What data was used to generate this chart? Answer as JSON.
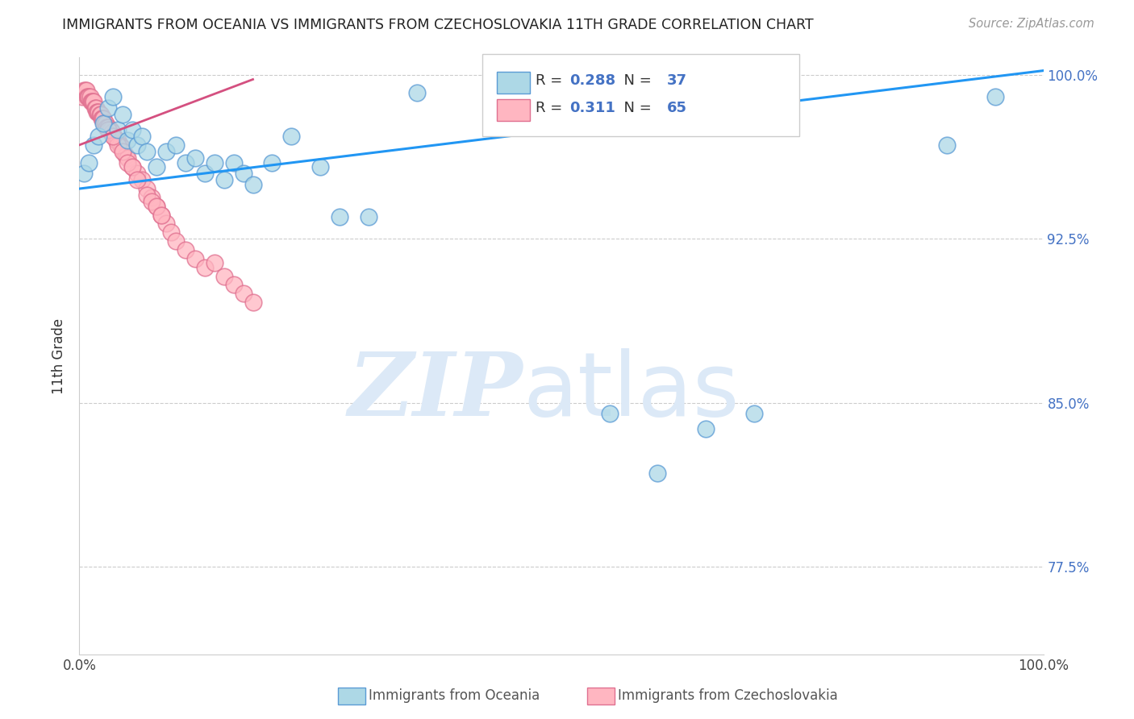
{
  "title": "IMMIGRANTS FROM OCEANIA VS IMMIGRANTS FROM CZECHOSLOVAKIA 11TH GRADE CORRELATION CHART",
  "source": "Source: ZipAtlas.com",
  "ylabel": "11th Grade",
  "xlim": [
    0.0,
    1.0
  ],
  "ylim": [
    0.735,
    1.008
  ],
  "yticks": [
    0.775,
    0.85,
    0.925,
    1.0
  ],
  "ytick_labels": [
    "77.5%",
    "85.0%",
    "92.5%",
    "100.0%"
  ],
  "legend_R1": "0.288",
  "legend_N1": "37",
  "legend_R2": "0.311",
  "legend_N2": "65",
  "blue_color": "#add8e6",
  "blue_edge": "#5b9bd5",
  "pink_color": "#ffb6c1",
  "pink_edge": "#e07090",
  "blue_line_color": "#2196F3",
  "pink_line_color": "#d45080",
  "watermark_color": "#dce9f7",
  "scatter_blue_x": [
    0.005,
    0.01,
    0.015,
    0.02,
    0.025,
    0.03,
    0.035,
    0.04,
    0.045,
    0.05,
    0.055,
    0.06,
    0.065,
    0.07,
    0.08,
    0.09,
    0.1,
    0.11,
    0.12,
    0.13,
    0.14,
    0.15,
    0.16,
    0.17,
    0.18,
    0.2,
    0.22,
    0.25,
    0.27,
    0.3,
    0.35,
    0.55,
    0.6,
    0.65,
    0.7,
    0.9,
    0.95
  ],
  "scatter_blue_y": [
    0.955,
    0.96,
    0.968,
    0.972,
    0.978,
    0.985,
    0.99,
    0.975,
    0.982,
    0.97,
    0.975,
    0.968,
    0.972,
    0.965,
    0.958,
    0.965,
    0.968,
    0.96,
    0.962,
    0.955,
    0.96,
    0.952,
    0.96,
    0.955,
    0.95,
    0.96,
    0.972,
    0.958,
    0.935,
    0.935,
    0.992,
    0.845,
    0.818,
    0.838,
    0.845,
    0.968,
    0.99
  ],
  "scatter_pink_x": [
    0.003,
    0.005,
    0.006,
    0.007,
    0.008,
    0.009,
    0.01,
    0.011,
    0.012,
    0.013,
    0.014,
    0.015,
    0.016,
    0.017,
    0.018,
    0.019,
    0.02,
    0.021,
    0.022,
    0.023,
    0.024,
    0.025,
    0.026,
    0.027,
    0.028,
    0.03,
    0.032,
    0.034,
    0.036,
    0.038,
    0.04,
    0.042,
    0.044,
    0.046,
    0.048,
    0.05,
    0.055,
    0.06,
    0.065,
    0.07,
    0.075,
    0.08,
    0.085,
    0.09,
    0.095,
    0.1,
    0.11,
    0.12,
    0.13,
    0.14,
    0.15,
    0.16,
    0.17,
    0.18,
    0.04,
    0.045,
    0.05,
    0.055,
    0.06,
    0.07,
    0.075,
    0.08,
    0.085,
    0.03,
    0.035
  ],
  "scatter_pink_y": [
    0.99,
    0.993,
    0.993,
    0.993,
    0.99,
    0.99,
    0.99,
    0.99,
    0.988,
    0.988,
    0.988,
    0.988,
    0.985,
    0.985,
    0.983,
    0.983,
    0.983,
    0.982,
    0.982,
    0.98,
    0.98,
    0.98,
    0.978,
    0.978,
    0.976,
    0.976,
    0.975,
    0.974,
    0.972,
    0.97,
    0.97,
    0.968,
    0.967,
    0.965,
    0.963,
    0.962,
    0.958,
    0.955,
    0.952,
    0.948,
    0.944,
    0.94,
    0.936,
    0.932,
    0.928,
    0.924,
    0.92,
    0.916,
    0.912,
    0.914,
    0.908,
    0.904,
    0.9,
    0.896,
    0.968,
    0.965,
    0.96,
    0.958,
    0.952,
    0.945,
    0.942,
    0.94,
    0.936,
    0.975,
    0.972
  ],
  "blue_line_x": [
    0.0,
    1.0
  ],
  "blue_line_y": [
    0.948,
    1.002
  ],
  "pink_line_x": [
    0.0,
    0.18
  ],
  "pink_line_y": [
    0.968,
    0.998
  ]
}
